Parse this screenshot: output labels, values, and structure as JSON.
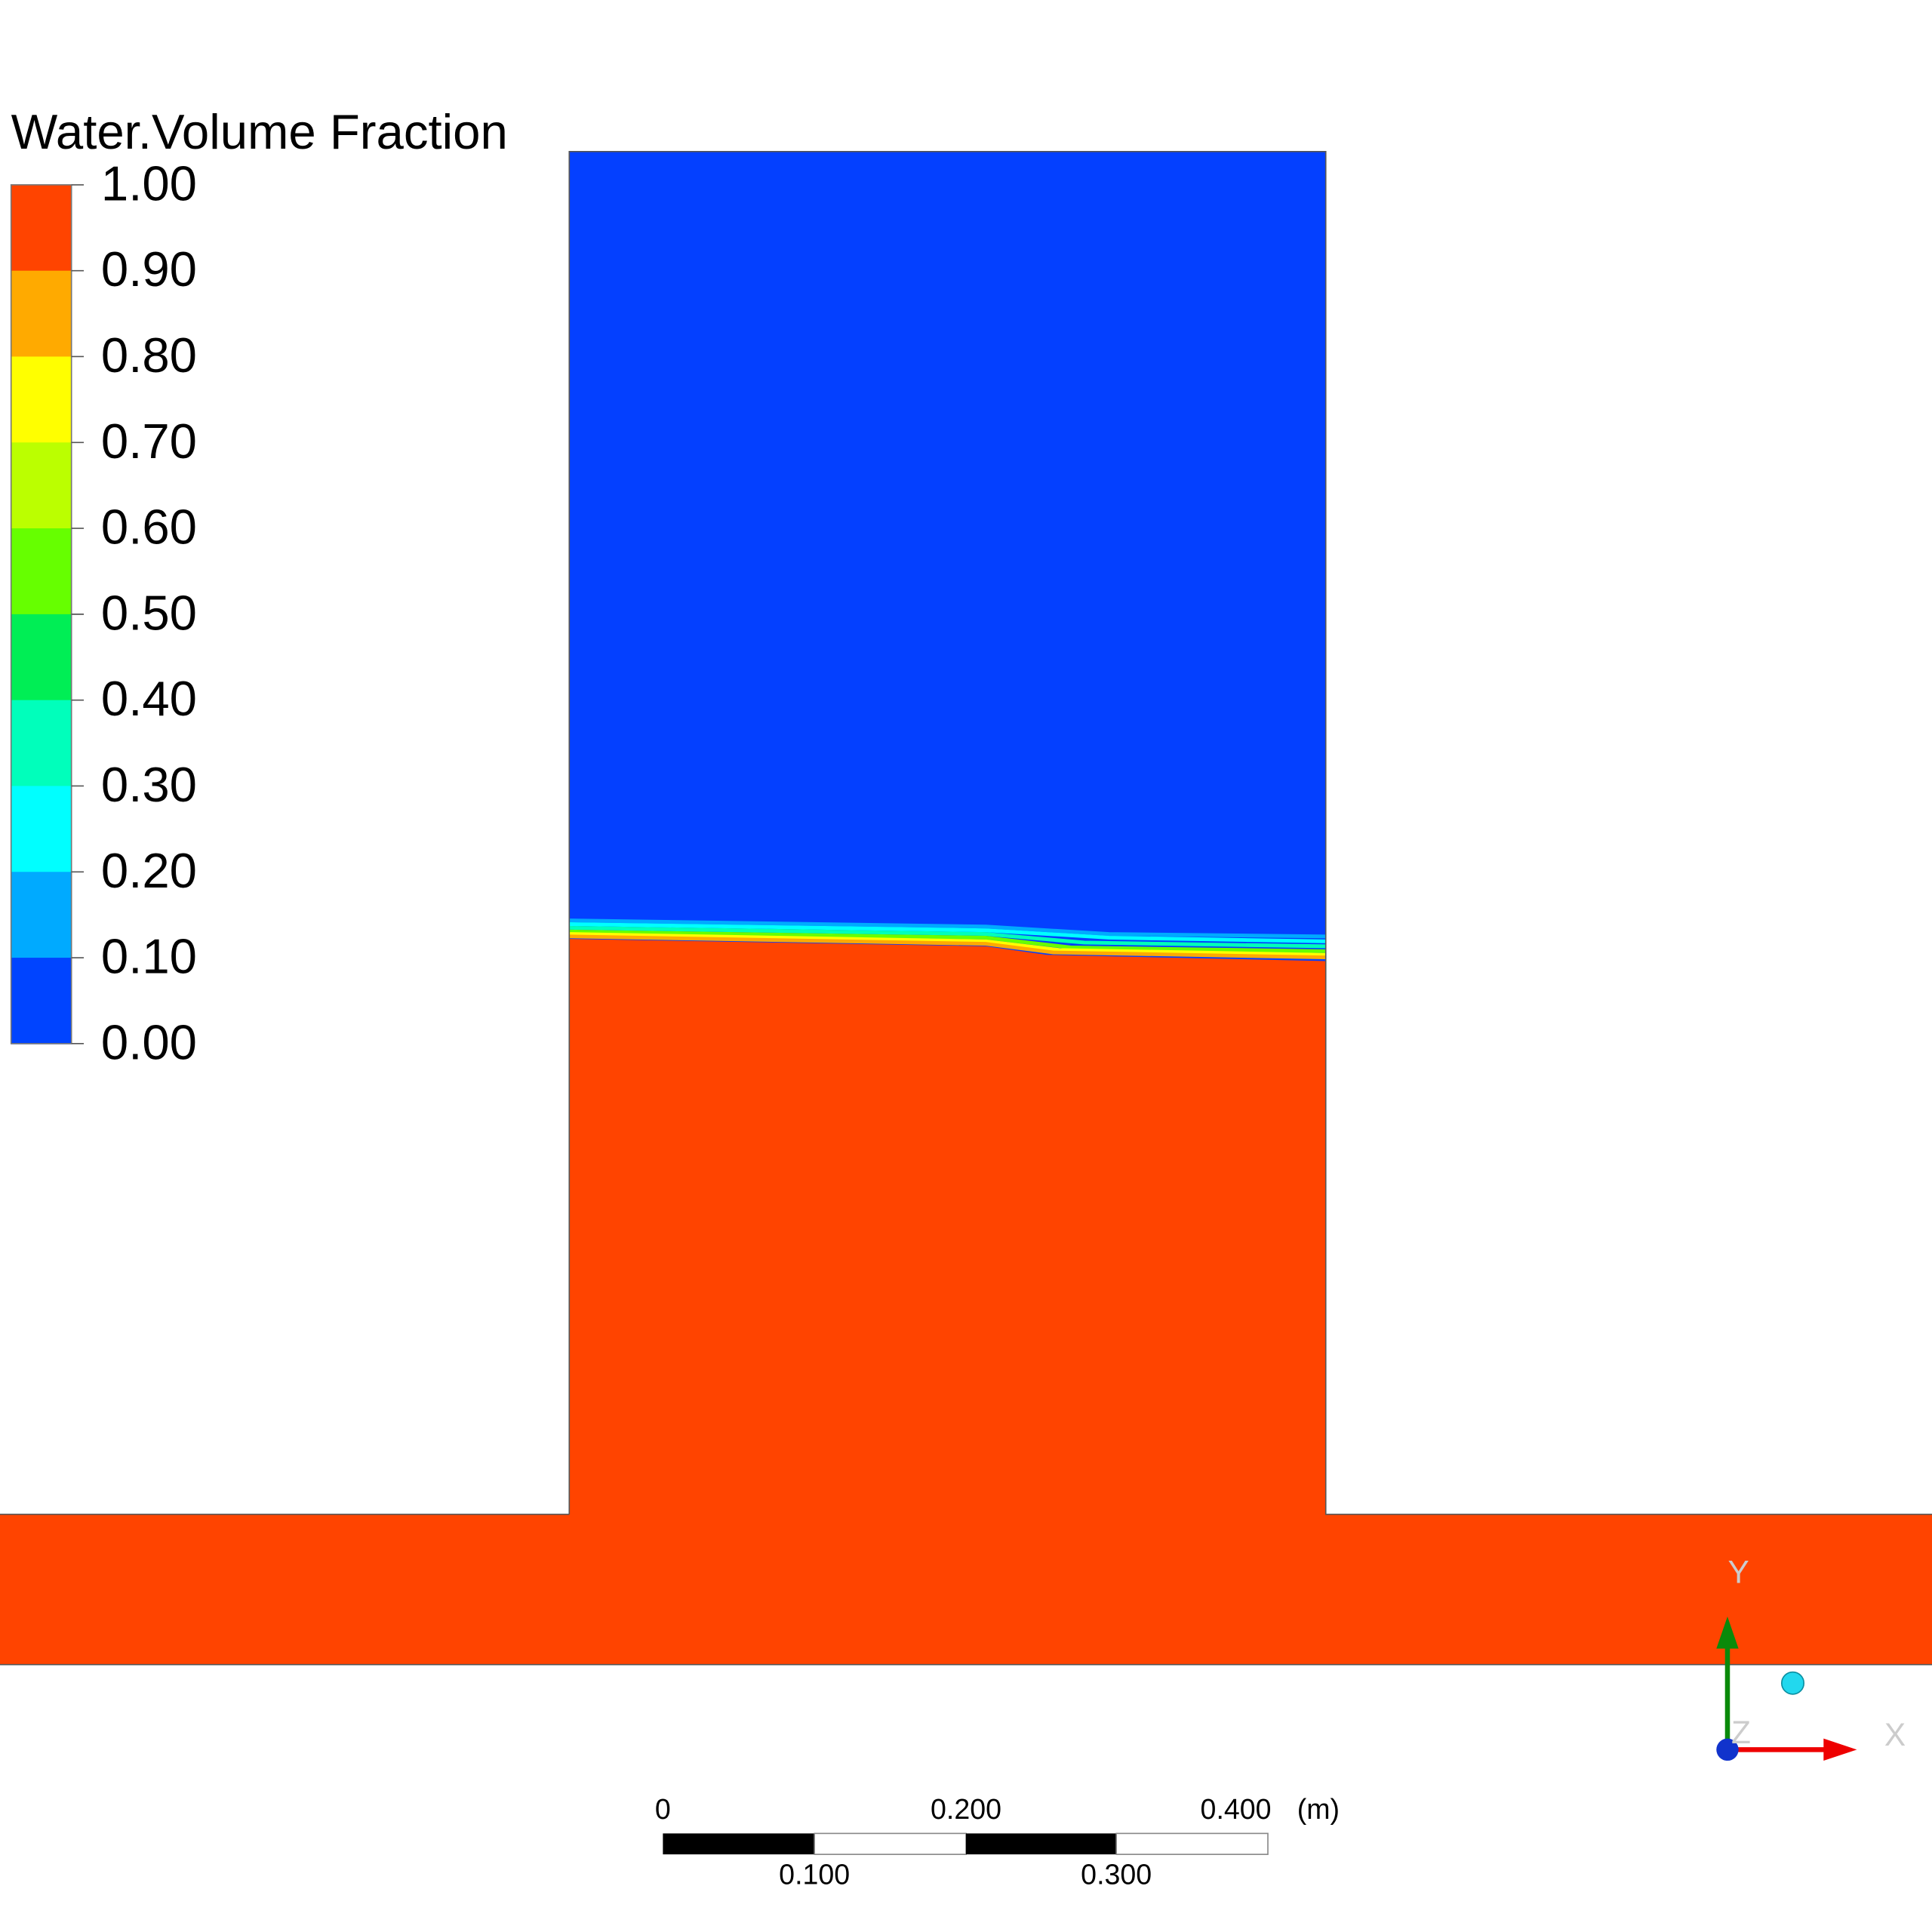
{
  "legend": {
    "title": "Water.Volume Fraction",
    "labels": [
      "1.00",
      "0.90",
      "0.80",
      "0.70",
      "0.60",
      "0.50",
      "0.40",
      "0.30",
      "0.20",
      "0.10",
      "0.00"
    ],
    "colors": [
      "#ff4400",
      "#ffaa00",
      "#ffff00",
      "#bbff00",
      "#66ff00",
      "#00ee55",
      "#00ffbb",
      "#00ffff",
      "#00aaff",
      "#0044ff"
    ]
  },
  "scale_bar": {
    "labels_top": [
      "0",
      "0.200",
      "0.400"
    ],
    "unit": "(m)",
    "labels_bottom": [
      "0.100",
      "0.300"
    ]
  },
  "axes_triad": {
    "labels": [
      "Y",
      "Z",
      "X"
    ]
  }
}
